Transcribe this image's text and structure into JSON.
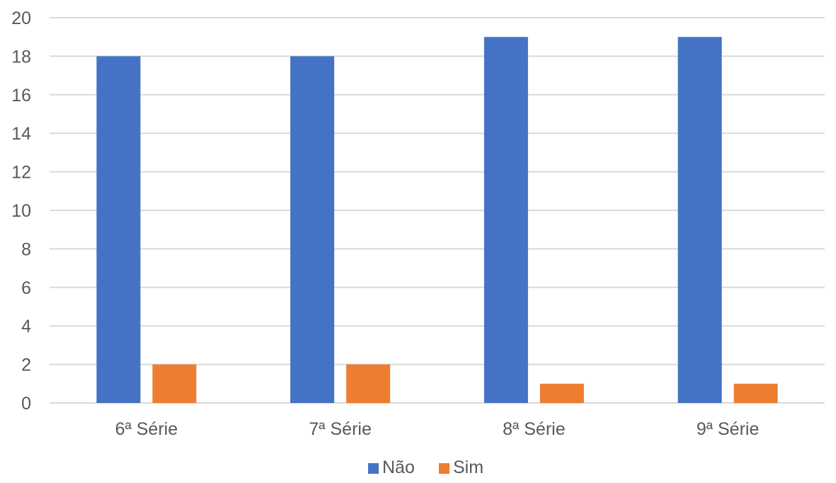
{
  "chart_data": {
    "type": "bar",
    "title": "",
    "xlabel": "",
    "ylabel": "",
    "categories": [
      "6ª Série",
      "7ª Série",
      "8ª Série",
      "9ª Série"
    ],
    "series": [
      {
        "name": "Não",
        "values": [
          18,
          18,
          19,
          19
        ],
        "color": "#4472c4"
      },
      {
        "name": "Sim",
        "values": [
          2,
          2,
          1,
          1
        ],
        "color": "#ed7d31"
      }
    ],
    "ylim": [
      0,
      20
    ],
    "yticks": [
      0,
      2,
      4,
      6,
      8,
      10,
      12,
      14,
      16,
      18,
      20
    ],
    "grid": true,
    "legend_position": "bottom"
  }
}
